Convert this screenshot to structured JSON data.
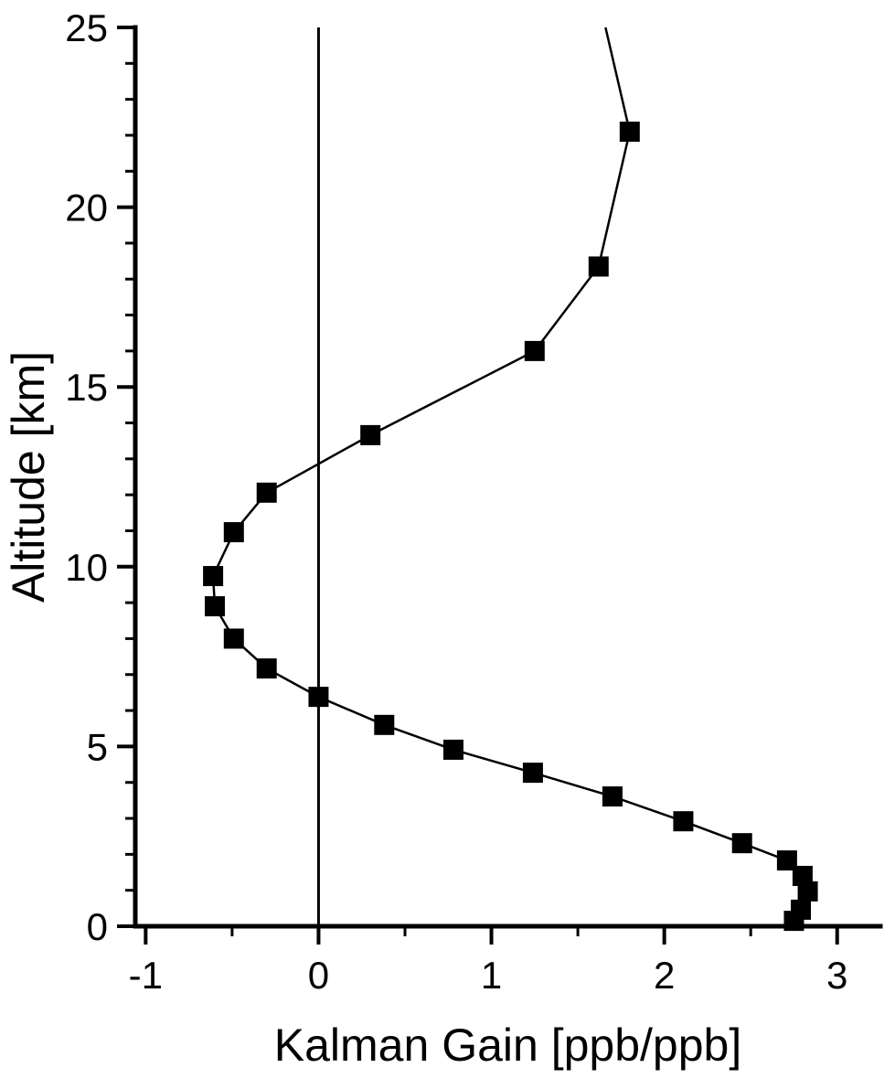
{
  "figure": {
    "background_color": "#ffffff",
    "foreground_color": "#000000"
  },
  "chart_data": {
    "type": "scatter",
    "title": "",
    "xlabel": "Kalman Gain [ppb/ppb]",
    "ylabel": "Altitude [km]",
    "xlim": [
      -1.06,
      3.25
    ],
    "ylim": [
      0,
      25
    ],
    "x_major_ticks": [
      -1,
      0,
      1,
      2,
      3
    ],
    "y_major_ticks": [
      0,
      5,
      10,
      15,
      20,
      25
    ],
    "x_minor_step": 0.5,
    "y_minor_step": 1,
    "grid": false,
    "legend": false,
    "reference_line_x": 0,
    "series": [
      {
        "name": "kalman-gain-profile",
        "marker": "filled-square",
        "line": "solid",
        "color": "#000000",
        "points_x_gain_y_altitude_km": [
          [
            2.75,
            0.15
          ],
          [
            2.79,
            0.46
          ],
          [
            2.83,
            0.97
          ],
          [
            2.8,
            1.4
          ],
          [
            2.71,
            1.83
          ],
          [
            2.45,
            2.31
          ],
          [
            2.11,
            2.92
          ],
          [
            1.7,
            3.61
          ],
          [
            1.24,
            4.27
          ],
          [
            0.78,
            4.91
          ],
          [
            0.38,
            5.6
          ],
          [
            0.0,
            6.38
          ],
          [
            -0.3,
            7.17
          ],
          [
            -0.49,
            8.0
          ],
          [
            -0.6,
            8.9
          ],
          [
            -0.61,
            9.74
          ],
          [
            -0.49,
            10.96
          ],
          [
            -0.3,
            12.06
          ],
          [
            0.3,
            13.66
          ],
          [
            1.25,
            16.0
          ],
          [
            1.62,
            18.35
          ],
          [
            1.8,
            22.1
          ]
        ],
        "line_only_points": [
          [
            1.66,
            25.0
          ]
        ]
      }
    ]
  }
}
